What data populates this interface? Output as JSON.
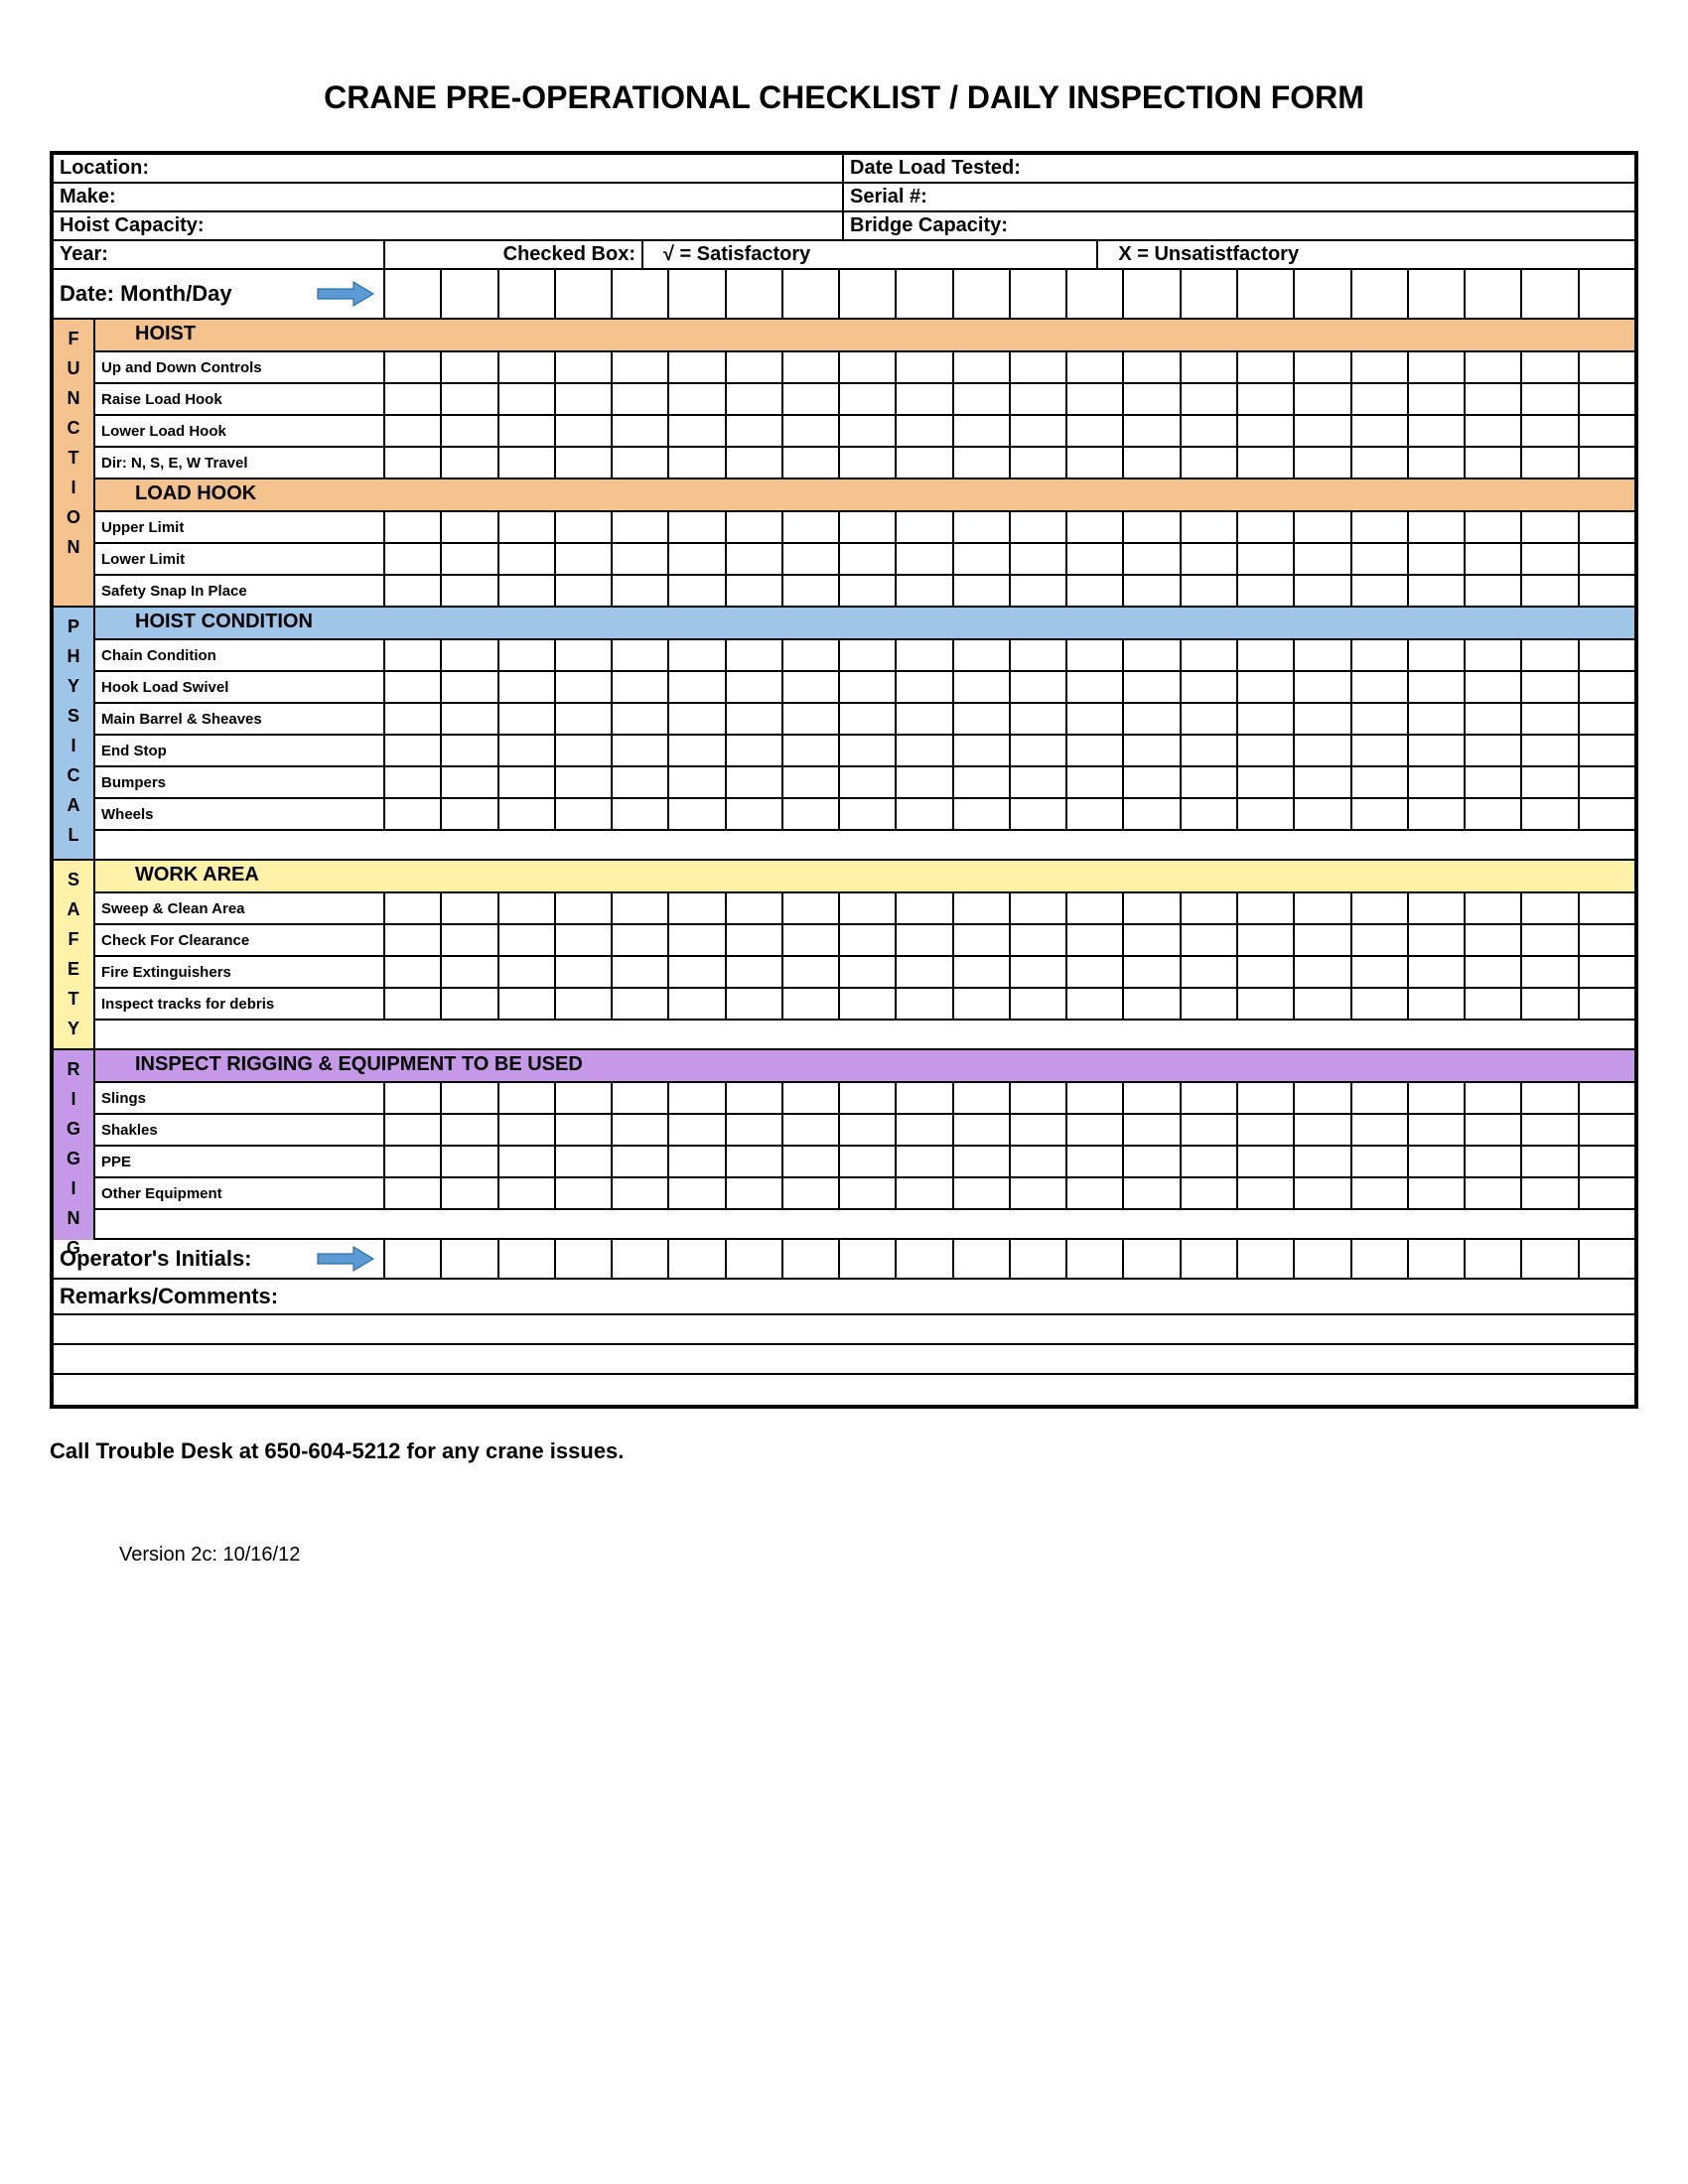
{
  "title": "CRANE PRE-OPERATIONAL CHECKLIST / DAILY INSPECTION FORM",
  "header": {
    "location": "Location:",
    "date_load_tested": "Date Load Tested:",
    "make": "Make:",
    "serial": "Serial #:",
    "hoist_capacity": "Hoist Capacity:",
    "bridge_capacity": "Bridge Capacity:",
    "year": "Year:",
    "checked_box": "Checked Box:",
    "satisfactory": "√ = Satisfactory",
    "unsatisfactory": "  X = Unsatistfactory",
    "date_label": "Date:  Month/Day"
  },
  "num_check_cols": 22,
  "spines": [
    {
      "label": "FUNCTION",
      "color": "#f4c28c",
      "height_rows": 7
    },
    {
      "label": "PHYSICAL",
      "color": "#9fc5e8",
      "height_rows": 7
    },
    {
      "label": "SAFETY",
      "color": "#fff2a8",
      "height_rows": 5
    },
    {
      "label": "RIGGING",
      "color": "#c599e8",
      "height_rows": 5
    }
  ],
  "sections": [
    {
      "spine": 0,
      "title": "HOIST",
      "color": "#f4c28c",
      "items": [
        "Up and Down Controls",
        "Raise Load Hook",
        "Lower Load Hook",
        "Dir: N, S, E, W Travel"
      ]
    },
    {
      "spine": 0,
      "title": "LOAD HOOK",
      "color": "#f4c28c",
      "items": [
        "Upper Limit",
        "Lower Limit",
        "Safety Snap In Place"
      ]
    },
    {
      "spine": 1,
      "title": "HOIST CONDITION",
      "color": "#9fc5e8",
      "items": [
        "Chain Condition",
        "Hook Load Swivel",
        "Main Barrel & Sheaves",
        "End Stop",
        "Bumpers",
        "Wheels"
      ],
      "trailing_blank": true
    },
    {
      "spine": 2,
      "title": "WORK AREA",
      "color": "#fff2a8",
      "items": [
        "Sweep & Clean Area",
        "Check For Clearance",
        "Fire Extinguishers",
        "Inspect tracks for debris"
      ],
      "trailing_blank": true
    },
    {
      "spine": 3,
      "title": "INSPECT RIGGING & EQUIPMENT TO BE USED",
      "color": "#c599e8",
      "items": [
        "Slings",
        "Shakles",
        "PPE",
        "Other Equipment"
      ],
      "trailing_blank": true
    }
  ],
  "operators_initials": "Operator's Initials:",
  "remarks": "Remarks/Comments:",
  "remarks_lines": 3,
  "footer1": "Call Trouble Desk at 650-604-5212 for any crane issues.",
  "footer2": "Version 2c: 10/16/12",
  "arrow": {
    "fill": "#5b9bd5",
    "stroke": "#2e6da4"
  }
}
